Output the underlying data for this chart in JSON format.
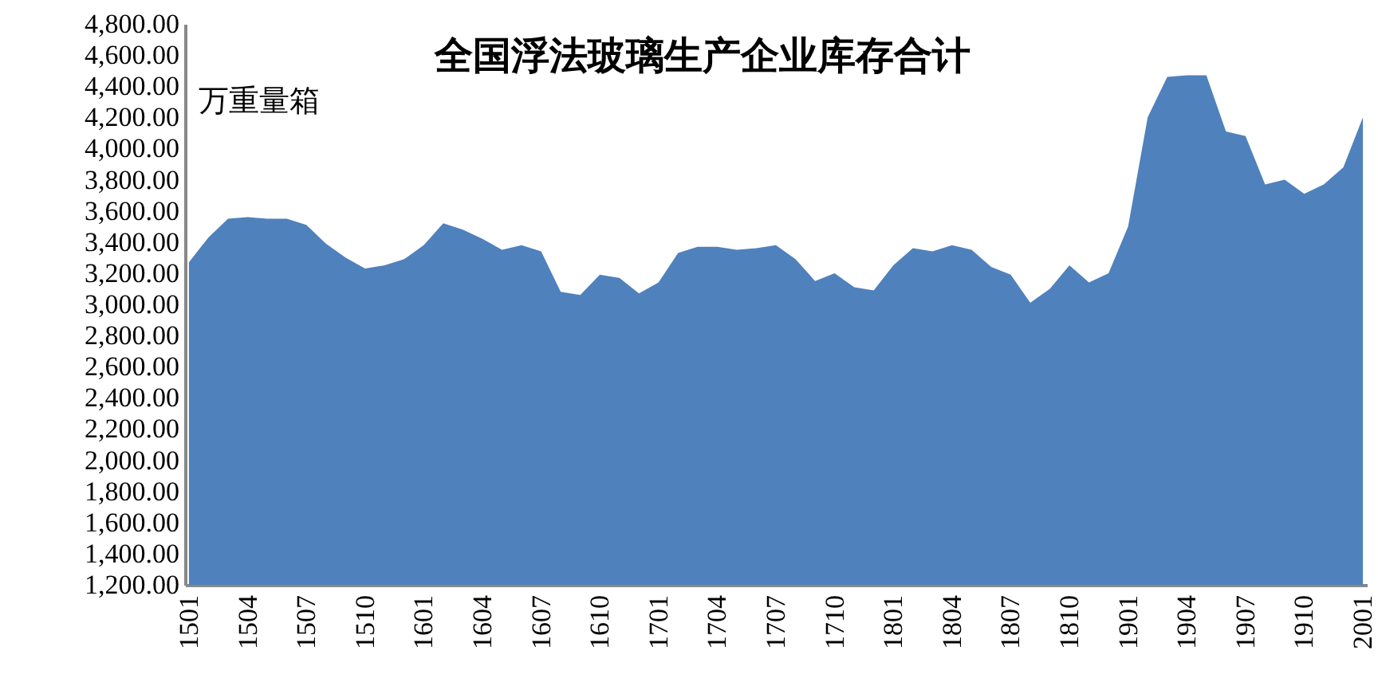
{
  "chart_data": {
    "type": "area",
    "title": "全国浮法玻璃生产企业库存合计",
    "ylabel": "万重量箱",
    "color": "#4f81bd",
    "categories": [
      "1501",
      null,
      null,
      "1504",
      null,
      null,
      "1507",
      null,
      null,
      "1510",
      null,
      null,
      "1601",
      null,
      null,
      "1604",
      null,
      null,
      "1607",
      null,
      null,
      "1610",
      null,
      null,
      "1701",
      null,
      null,
      "1704",
      null,
      null,
      "1707",
      null,
      null,
      "1710",
      null,
      null,
      "1801",
      null,
      null,
      "1804",
      null,
      null,
      "1807",
      null,
      null,
      "1810",
      null,
      null,
      "1901",
      null,
      null,
      "1904",
      null,
      null,
      "1907",
      null,
      null,
      "1910",
      null,
      null,
      "2001"
    ],
    "values": [
      3270,
      3430,
      3550,
      3560,
      3550,
      3550,
      3510,
      3390,
      3300,
      3230,
      3250,
      3290,
      3380,
      3520,
      3480,
      3420,
      3350,
      3380,
      3340,
      3080,
      3060,
      3190,
      3170,
      3070,
      3140,
      3330,
      3370,
      3370,
      3350,
      3360,
      3380,
      3290,
      3150,
      3200,
      3110,
      3090,
      3250,
      3360,
      3340,
      3380,
      3350,
      3240,
      3190,
      3010,
      3100,
      3250,
      3140,
      3200,
      3500,
      4200,
      4460,
      4470,
      4470,
      4110,
      4080,
      3770,
      3800,
      3710,
      3770,
      3880,
      4200
    ],
    "ylim": [
      1200,
      4800
    ],
    "yticks": [
      {
        "value": 1200,
        "label": "1,200.00"
      },
      {
        "value": 1400,
        "label": "1,400.00"
      },
      {
        "value": 1600,
        "label": "1,600.00"
      },
      {
        "value": 1800,
        "label": "1,800.00"
      },
      {
        "value": 2000,
        "label": "2,000.00"
      },
      {
        "value": 2200,
        "label": "2,200.00"
      },
      {
        "value": 2400,
        "label": "2,400.00"
      },
      {
        "value": 2600,
        "label": "2,600.00"
      },
      {
        "value": 2800,
        "label": "2,800.00"
      },
      {
        "value": 3000,
        "label": "3,000.00"
      },
      {
        "value": 3200,
        "label": "3,200.00"
      },
      {
        "value": 3400,
        "label": "3,400.00"
      },
      {
        "value": 3600,
        "label": "3,600.00"
      },
      {
        "value": 3800,
        "label": "3,800.00"
      },
      {
        "value": 4000,
        "label": "4,000.00"
      },
      {
        "value": 4200,
        "label": "4,200.00"
      },
      {
        "value": 4400,
        "label": "4,400.00"
      },
      {
        "value": 4600,
        "label": "4,600.00"
      },
      {
        "value": 4800,
        "label": "4,800.00"
      }
    ],
    "grid": false
  }
}
